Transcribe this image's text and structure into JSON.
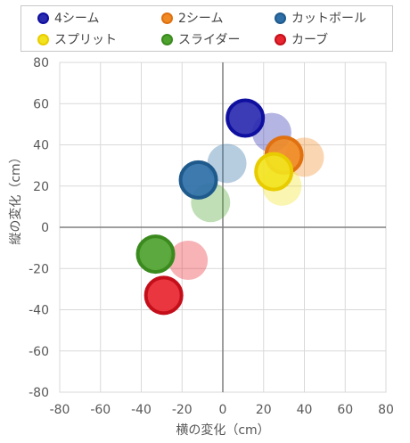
{
  "chart_data": {
    "type": "scatter",
    "title": "",
    "xlabel": "横の変化（cm）",
    "ylabel": "縦の変化（cm）",
    "xlim": [
      -80,
      80
    ],
    "ylim": [
      -80,
      80
    ],
    "xticks": [
      -80,
      -60,
      -40,
      -20,
      0,
      20,
      40,
      60,
      80
    ],
    "yticks": [
      -80,
      -60,
      -40,
      -20,
      0,
      20,
      40,
      60,
      80
    ],
    "grid": true,
    "legend_position": "top",
    "series": [
      {
        "name": "4シーム",
        "color": "#2b2bb0",
        "edge": "#1010a0",
        "points": [
          {
            "x": 11,
            "y": 53,
            "style": "bold"
          },
          {
            "x": 24,
            "y": 46,
            "style": "faded"
          }
        ]
      },
      {
        "name": "2シーム",
        "color": "#f08a24",
        "edge": "#e07010",
        "points": [
          {
            "x": 30,
            "y": 35,
            "style": "bold"
          },
          {
            "x": 40,
            "y": 34,
            "style": "faded"
          }
        ]
      },
      {
        "name": "カットボール",
        "color": "#2e6fa7",
        "edge": "#1f5a8c",
        "points": [
          {
            "x": -12,
            "y": 23,
            "style": "bold"
          },
          {
            "x": 2,
            "y": 31,
            "style": "faded"
          }
        ]
      },
      {
        "name": "スプリット",
        "color": "#f2e31e",
        "edge": "#e8cc00",
        "points": [
          {
            "x": 25,
            "y": 27,
            "style": "bold"
          },
          {
            "x": 29,
            "y": 20,
            "style": "faded"
          }
        ]
      },
      {
        "name": "スライダー",
        "color": "#4ea32f",
        "edge": "#3a8a1e",
        "points": [
          {
            "x": -33,
            "y": -13,
            "style": "bold"
          },
          {
            "x": -6,
            "y": 12,
            "style": "faded"
          }
        ]
      },
      {
        "name": "カーブ",
        "color": "#e8262f",
        "edge": "#c40f1b",
        "points": [
          {
            "x": -29,
            "y": -33,
            "style": "bold"
          },
          {
            "x": -17,
            "y": -16,
            "style": "faded"
          }
        ]
      }
    ]
  }
}
